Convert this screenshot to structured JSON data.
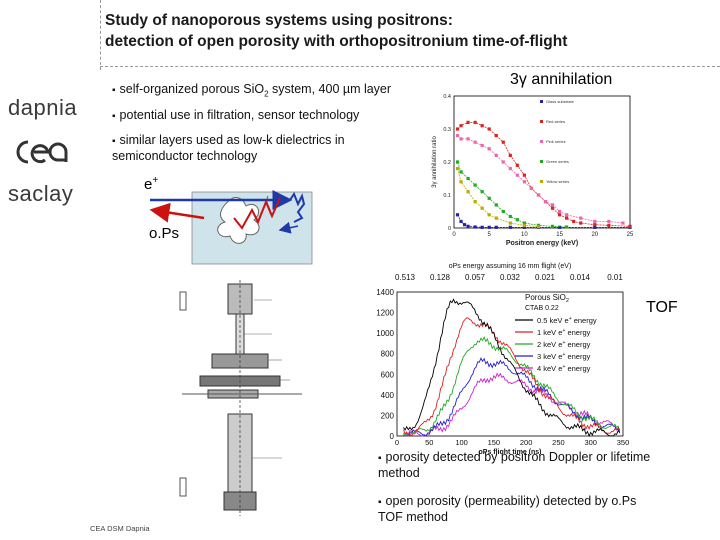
{
  "slide": {
    "title_line1": "Study of nanoporous systems using positrons:",
    "title_line2": "detection of open porosity with orthopositronium time-of-flight",
    "footer": "CEA DSM Dapnia"
  },
  "logos": {
    "dapnia": "dapnia",
    "saclay": "saclay"
  },
  "bullets": {
    "b1_pre": "self-organized porous Si",
    "b1_o": "O",
    "b1_sub": "2",
    "b1_post": " system, 400 µm layer",
    "b2": "potential use in filtration, sensor technology",
    "b3_line1": "similar layers used as low-k dielectrics in",
    "b3_line2": "semiconductor technology",
    "b4_line1": "porosity detected by positron Doppler or lifetime",
    "b4_line2": "method",
    "b5_line1": "open porosity (permeability) detected by o.Ps",
    "b5_line2": "TOF method"
  },
  "diagram": {
    "eplus": "e",
    "eplus_sup": "+",
    "ops": "o.Ps"
  },
  "labels": {
    "annihilation": "3γ annihilation",
    "tof": "TOF"
  },
  "chart_data": [
    {
      "type": "line",
      "title": "3γ annihilation",
      "xlabel": "Positron energy (keV)",
      "ylabel": "3γ annihilation ratio",
      "xlim": [
        0,
        25
      ],
      "ylim": [
        0,
        0.4
      ],
      "xticks": [
        "0",
        "5",
        "10",
        "15",
        "20",
        "25"
      ],
      "yticks": [
        "0",
        "0.1",
        "0.2",
        "0.3",
        "0.4"
      ],
      "series": [
        {
          "name": "Glass substrate",
          "color": "#2222aa",
          "x": [
            0.5,
            1,
            1.5,
            2,
            3,
            4,
            5,
            6,
            8,
            10,
            12,
            15,
            20,
            25
          ],
          "y": [
            0.04,
            0.02,
            0.01,
            0.005,
            0.003,
            0.002,
            0.002,
            0.002,
            0.002,
            0.002,
            0.002,
            0.002,
            0.002,
            0.002
          ]
        },
        {
          "name": "Red series",
          "color": "#dd2222",
          "x": [
            0.5,
            1,
            2,
            3,
            4,
            5,
            6,
            7,
            8,
            9,
            10,
            11,
            12,
            13,
            14,
            15,
            16,
            17,
            18,
            20,
            22,
            25
          ],
          "y": [
            0.3,
            0.31,
            0.32,
            0.32,
            0.31,
            0.3,
            0.28,
            0.26,
            0.22,
            0.19,
            0.16,
            0.12,
            0.1,
            0.08,
            0.06,
            0.04,
            0.03,
            0.02,
            0.015,
            0.01,
            0.008,
            0.005
          ]
        },
        {
          "name": "Pink series",
          "color": "#ee66aa",
          "x": [
            0.5,
            1,
            2,
            3,
            4,
            5,
            6,
            7,
            8,
            9,
            10,
            11,
            12,
            13,
            14,
            15,
            16,
            18,
            20,
            22,
            24
          ],
          "y": [
            0.28,
            0.27,
            0.27,
            0.26,
            0.25,
            0.24,
            0.22,
            0.2,
            0.18,
            0.16,
            0.14,
            0.12,
            0.1,
            0.08,
            0.07,
            0.05,
            0.04,
            0.03,
            0.02,
            0.02,
            0.015
          ]
        },
        {
          "name": "Green series",
          "color": "#22aa22",
          "x": [
            0.5,
            1,
            2,
            3,
            4,
            5,
            6,
            7,
            8,
            9,
            10,
            12,
            14,
            16
          ],
          "y": [
            0.2,
            0.17,
            0.15,
            0.13,
            0.11,
            0.09,
            0.07,
            0.05,
            0.035,
            0.025,
            0.015,
            0.008,
            0.005,
            0.003
          ]
        },
        {
          "name": "Yellow series",
          "color": "#bbaa00",
          "x": [
            0.5,
            1,
            2,
            3,
            4,
            5,
            6,
            8,
            10,
            12
          ],
          "y": [
            0.18,
            0.14,
            0.11,
            0.08,
            0.06,
            0.04,
            0.03,
            0.015,
            0.008,
            0.004
          ]
        }
      ]
    },
    {
      "type": "line",
      "title": "oPs energy assuming 16 mm flight (eV)",
      "top_ticks": [
        "0.513",
        "0.128",
        "0.057",
        "0.032",
        "0.021",
        "0.014",
        "0.01"
      ],
      "xlabel": "oPs flight time (ns)",
      "xlim": [
        0,
        350
      ],
      "ylim": [
        0,
        1400
      ],
      "xticks": [
        "0",
        "50",
        "100",
        "150",
        "200",
        "250",
        "300",
        "350"
      ],
      "yticks": [
        "0",
        "200",
        "400",
        "600",
        "800",
        "1000",
        "1200",
        "1400"
      ],
      "annotation_line1": "Porous SiO",
      "annotation_sub": "2",
      "annotation_line2": "CTAB 0.22",
      "series": [
        {
          "name": "0.5 keV",
          "label": "0.5 keV e",
          "label_sup": "+",
          "label_post": " energy",
          "color": "#000000",
          "peak_t": 90,
          "peak_v": 1300,
          "width": 50
        },
        {
          "name": "1 keV",
          "label": "1 keV e",
          "label_sup": "+",
          "label_post": " energy",
          "color": "#dd2222",
          "peak_t": 110,
          "peak_v": 1100,
          "width": 55
        },
        {
          "name": "2 keV",
          "label": "2 keV e",
          "label_sup": "+",
          "label_post": " energy",
          "color": "#22aa22",
          "peak_t": 125,
          "peak_v": 900,
          "width": 60
        },
        {
          "name": "3 keV",
          "label": "3 keV e",
          "label_sup": "+",
          "label_post": " energy",
          "color": "#2222cc",
          "peak_t": 135,
          "peak_v": 700,
          "width": 60
        },
        {
          "name": "4 keV",
          "label": "4 keV e",
          "label_sup": "+",
          "label_post": " energy",
          "color": "#cc22cc",
          "peak_t": 145,
          "peak_v": 550,
          "width": 65
        }
      ]
    }
  ]
}
